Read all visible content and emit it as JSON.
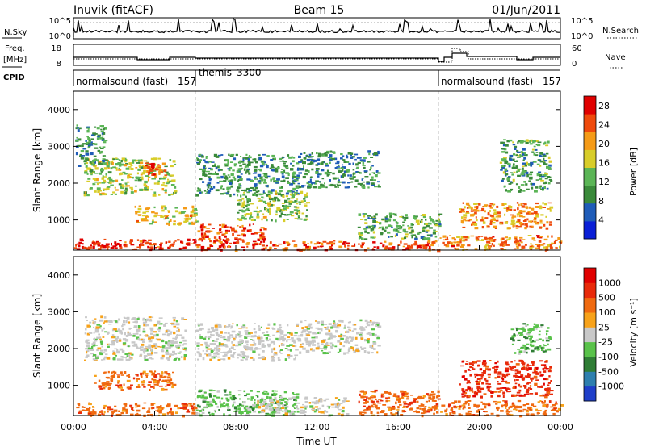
{
  "header": {
    "station": "Inuvik (fitACF)",
    "beam": "Beam 15",
    "date": "01/Jun/2011"
  },
  "summary_panels": {
    "nsky_label": "N.Sky",
    "nsky_ticks": [
      "10^5",
      "10^0"
    ],
    "nsearch_label": "N.Search",
    "nsearch_ticks": [
      "10^5",
      "10^0"
    ],
    "freq_label": "Freq.",
    "freq_unit": "[MHz]",
    "freq_ticks": [
      "18",
      "8"
    ],
    "nave_label": "Nave",
    "nave_ticks": [
      "60",
      "0"
    ],
    "cpid_label": "CPID",
    "cpid_segments": [
      {
        "name": "normalsound (fast)",
        "id": "157",
        "start_hour": 0,
        "end_hour": 6
      },
      {
        "name": "themis",
        "id": "3300",
        "start_hour": 6,
        "end_hour": 18
      },
      {
        "name": "normalsound (fast)",
        "id": "157",
        "start_hour": 18,
        "end_hour": 24
      }
    ]
  },
  "chart_data": [
    {
      "type": "heatmap",
      "name": "power-panel",
      "title": "",
      "xlabel": "Time UT",
      "ylabel": "Slant Range [km]",
      "xlim": [
        0,
        24
      ],
      "ylim": [
        180,
        4500
      ],
      "x_ticks": [
        "00:00",
        "04:00",
        "08:00",
        "12:00",
        "16:00",
        "20:00",
        "00:00"
      ],
      "y_ticks": [
        "1000",
        "2000",
        "3000",
        "4000"
      ],
      "colorbar_label": "Power [dB]",
      "colorbar_ticks": [
        "28",
        "24",
        "20",
        "16",
        "12",
        "8",
        "4"
      ],
      "colorbar_range": [
        0,
        30
      ],
      "colors": [
        "#0a1fd6",
        "#1f5cb8",
        "#3a8a3a",
        "#5bb556",
        "#d8cd2a",
        "#f59b17",
        "#ef4a0c",
        "#e00000"
      ],
      "echo_regions": [
        {
          "t0": 0.0,
          "t1": 6.0,
          "r0": 200,
          "r1": 500,
          "val": 27
        },
        {
          "t0": 6.0,
          "t1": 9.5,
          "r0": 200,
          "r1": 900,
          "val": 25
        },
        {
          "t0": 9.5,
          "t1": 18.0,
          "r0": 200,
          "r1": 450,
          "val": 24
        },
        {
          "t0": 18.0,
          "t1": 24.0,
          "r0": 200,
          "r1": 600,
          "val": 22
        },
        {
          "t0": 19.0,
          "t1": 23.5,
          "r0": 800,
          "r1": 1500,
          "val": 21
        },
        {
          "t0": 0.5,
          "t1": 5.0,
          "r0": 1700,
          "r1": 2700,
          "val": 15
        },
        {
          "t0": 3.5,
          "t1": 4.5,
          "r0": 2200,
          "r1": 2600,
          "val": 26
        },
        {
          "t0": 3.0,
          "t1": 6.0,
          "r0": 900,
          "r1": 1400,
          "val": 18
        },
        {
          "t0": 6.0,
          "t1": 11.0,
          "r0": 1700,
          "r1": 2800,
          "val": 10
        },
        {
          "t0": 8.0,
          "t1": 11.5,
          "r0": 1000,
          "r1": 1800,
          "val": 14
        },
        {
          "t0": 11.0,
          "t1": 15.0,
          "r0": 1900,
          "r1": 2900,
          "val": 9
        },
        {
          "t0": 14.0,
          "t1": 18.0,
          "r0": 500,
          "r1": 1200,
          "val": 12
        },
        {
          "t0": 21.0,
          "t1": 23.5,
          "r0": 1800,
          "r1": 3200,
          "val": 11
        },
        {
          "t0": 0.0,
          "t1": 1.5,
          "r0": 2500,
          "r1": 3600,
          "val": 10
        }
      ]
    },
    {
      "type": "heatmap",
      "name": "velocity-panel",
      "title": "",
      "xlabel": "Time UT",
      "ylabel": "Slant Range [km]",
      "xlim": [
        0,
        24
      ],
      "ylim": [
        180,
        4500
      ],
      "x_ticks": [
        "00:00",
        "04:00",
        "08:00",
        "12:00",
        "16:00",
        "20:00",
        "00:00"
      ],
      "y_ticks": [
        "1000",
        "2000",
        "3000",
        "4000"
      ],
      "colorbar_label": "Velocity [m s⁻¹]",
      "colorbar_ticks": [
        "1000",
        "500",
        "100",
        "25",
        "-25",
        "-100",
        "-500",
        "-1000"
      ],
      "colors": [
        "#1f3fc9",
        "#2e7fae",
        "#2f7d35",
        "#59c24a",
        "#c8c8c8",
        "#f7a21a",
        "#f06a10",
        "#e82a0a",
        "#e00000"
      ],
      "echo_regions": [
        {
          "t0": 0.0,
          "t1": 6.0,
          "r0": 200,
          "r1": 550,
          "cat": 6
        },
        {
          "t0": 0.5,
          "t1": 5.5,
          "r0": 1700,
          "r1": 2900,
          "cat": 4
        },
        {
          "t0": 6.0,
          "t1": 11.0,
          "r0": 200,
          "r1": 900,
          "cat": 3
        },
        {
          "t0": 6.0,
          "t1": 11.0,
          "r0": 1700,
          "r1": 2700,
          "cat": 4
        },
        {
          "t0": 9.0,
          "t1": 13.5,
          "r0": 200,
          "r1": 700,
          "cat": 4
        },
        {
          "t0": 11.0,
          "t1": 15.0,
          "r0": 1900,
          "r1": 2800,
          "cat": 4
        },
        {
          "t0": 14.0,
          "t1": 18.0,
          "r0": 200,
          "r1": 900,
          "cat": 6
        },
        {
          "t0": 18.0,
          "t1": 24.0,
          "r0": 200,
          "r1": 600,
          "cat": 6
        },
        {
          "t0": 19.0,
          "t1": 23.5,
          "r0": 700,
          "r1": 1700,
          "cat": 7
        },
        {
          "t0": 1.0,
          "t1": 5.0,
          "r0": 900,
          "r1": 1400,
          "cat": 6
        },
        {
          "t0": 21.5,
          "t1": 23.5,
          "r0": 1900,
          "r1": 2700,
          "cat": 3
        }
      ]
    }
  ]
}
